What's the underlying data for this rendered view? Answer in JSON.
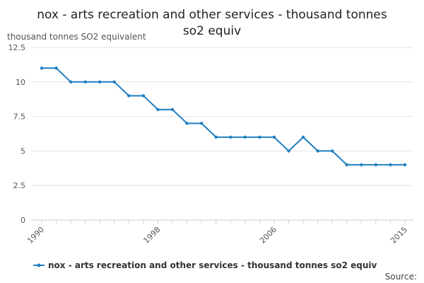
{
  "chart_data": {
    "type": "line",
    "title_lines": [
      "nox - arts recreation and other services - thousand tonnes",
      "so2 equiv"
    ],
    "ylabel": "thousand tonnes SO2 equivalent",
    "xlabel": "",
    "ylim": [
      0,
      12.5
    ],
    "yticks": [
      "0",
      "2.5",
      "5",
      "7.5",
      "10",
      "12.5"
    ],
    "xticks": [
      "1990",
      "1998",
      "2006",
      "2015"
    ],
    "grid": true,
    "legend_position": "bottom",
    "series": [
      {
        "name": "nox - arts recreation and other services - thousand tonnes so2 equiv",
        "color": "#1f7fc1",
        "x": [
          1990,
          1991,
          1992,
          1993,
          1994,
          1995,
          1996,
          1997,
          1998,
          1999,
          2000,
          2001,
          2002,
          2003,
          2004,
          2005,
          2006,
          2007,
          2008,
          2009,
          2010,
          2011,
          2012,
          2013,
          2014,
          2015
        ],
        "values": [
          11,
          11,
          10,
          10,
          10,
          10,
          9,
          9,
          8,
          8,
          7,
          7,
          6,
          6,
          6,
          6,
          6,
          5,
          6,
          5,
          5,
          4,
          4,
          4,
          4,
          4
        ]
      }
    ]
  },
  "source_label": "Source:"
}
